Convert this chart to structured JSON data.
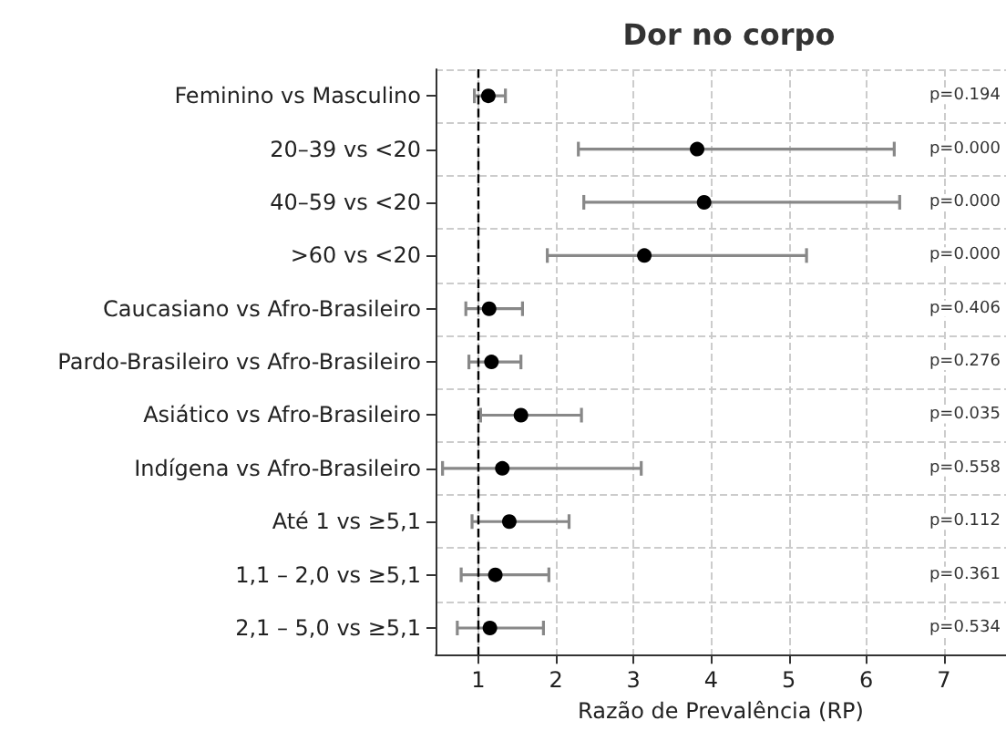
{
  "chart_data": {
    "type": "scatter",
    "title": "Dor no corpo",
    "xlabel": "Razão de Prevalência (RP)",
    "orientation": "horizontal",
    "categories": [
      "Feminino vs Masculino",
      "20–39 vs <20",
      "40–59 vs <20",
      ">60 vs <20",
      "Caucasiano vs Afro-Brasileiro",
      "Pardo-Brasileiro vs Afro-Brasileiro",
      "Asiático vs Afro-Brasileiro",
      "Indígena vs Afro-Brasileiro",
      "Até 1 vs ≥5,1",
      "1,1 – 2,0 vs ≥5,1",
      "2,1 – 5,0 vs ≥5,1"
    ],
    "series": [
      {
        "color": "#000000",
        "values": [
          1.13,
          3.82,
          3.91,
          3.14,
          1.14,
          1.17,
          1.55,
          1.31,
          1.4,
          1.22,
          1.15
        ],
        "errors": [
          [
            0.95,
            1.35
          ],
          [
            2.29,
            6.36
          ],
          [
            2.36,
            6.43
          ],
          [
            1.89,
            5.23
          ],
          [
            0.84,
            1.57
          ],
          [
            0.88,
            1.55
          ],
          [
            1.03,
            2.33
          ],
          [
            0.54,
            3.1
          ],
          [
            0.92,
            2.17
          ],
          [
            0.78,
            1.91
          ],
          [
            0.73,
            1.84
          ]
        ]
      }
    ],
    "xlim": [
      0.45,
      7.8
    ],
    "xticks": [
      1,
      2,
      3,
      4,
      5,
      6,
      7
    ],
    "grid": true,
    "marker": "circle",
    "ref_lines": [
      {
        "axis": "x",
        "value": 1,
        "color": "#000000",
        "line_style": "dashed"
      }
    ],
    "annotations": [
      "p=0.194",
      "p=0.000",
      "p=0.000",
      "p=0.000",
      "p=0.406",
      "p=0.276",
      "p=0.035",
      "p=0.558",
      "p=0.112",
      "p=0.361",
      "p=0.534"
    ]
  }
}
